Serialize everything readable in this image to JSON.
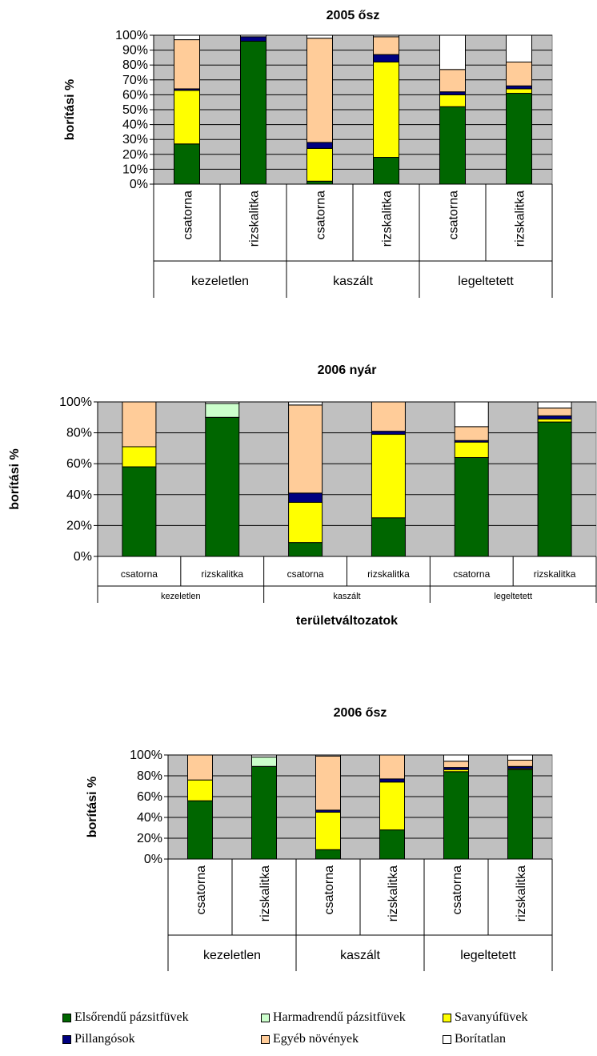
{
  "chart_data": [
    {
      "type": "bar",
      "stacked": true,
      "percent": true,
      "title": "2005 ősz",
      "ylabel": "borítási %",
      "xlabel": "",
      "ylim": [
        0,
        100
      ],
      "yticks": [
        "0%",
        "10%",
        "20%",
        "30%",
        "40%",
        "50%",
        "60%",
        "70%",
        "80%",
        "90%",
        "100%"
      ],
      "groups": [
        "kezeletlen",
        "kaszált",
        "legeltetett"
      ],
      "categories": [
        "csatorna",
        "rizskalitka",
        "csatorna",
        "rizskalitka",
        "csatorna",
        "rizskalitka"
      ],
      "category_label_orientation": "vertical",
      "series": [
        {
          "name": "Elsőrendű pázsitfüvek",
          "values": [
            27,
            96,
            2,
            18,
            52,
            61
          ]
        },
        {
          "name": "Harmadrendű pázsitfüvek",
          "values": [
            0,
            0,
            0,
            0,
            0,
            0
          ]
        },
        {
          "name": "Savanyúfüvek",
          "values": [
            36,
            0,
            22,
            64,
            8,
            3
          ]
        },
        {
          "name": "Pillangósok",
          "values": [
            1,
            3,
            4,
            5,
            2,
            2
          ]
        },
        {
          "name": "Egyéb növények",
          "values": [
            33,
            0,
            70,
            12,
            15,
            16
          ]
        },
        {
          "name": "Borítatlan",
          "values": [
            3,
            1,
            2,
            1,
            23,
            18
          ]
        }
      ]
    },
    {
      "type": "bar",
      "stacked": true,
      "percent": true,
      "title": "2006 nyár",
      "ylabel": "borítási %",
      "xlabel": "területváltozatok",
      "ylim": [
        0,
        100
      ],
      "yticks": [
        "0%",
        "20%",
        "40%",
        "60%",
        "80%",
        "100%"
      ],
      "groups": [
        "kezeletlen",
        "kaszált",
        "legeltetett"
      ],
      "categories": [
        "csatorna",
        "rizskalitka",
        "csatorna",
        "rizskalitka",
        "csatorna",
        "rizskalitka"
      ],
      "category_label_orientation": "horizontal",
      "series": [
        {
          "name": "Elsőrendű pázsitfüvek",
          "values": [
            58,
            90,
            9,
            25,
            64,
            87
          ]
        },
        {
          "name": "Harmadrendű pázsitfüvek",
          "values": [
            0,
            9,
            0,
            0,
            0,
            0
          ]
        },
        {
          "name": "Savanyúfüvek",
          "values": [
            13,
            0,
            26,
            54,
            10,
            2
          ]
        },
        {
          "name": "Pillangósok",
          "values": [
            0,
            0,
            6,
            2,
            1,
            2
          ]
        },
        {
          "name": "Egyéb növények",
          "values": [
            29,
            0,
            57,
            19,
            9,
            5
          ]
        },
        {
          "name": "Borítatlan",
          "values": [
            0,
            1,
            2,
            0,
            16,
            4
          ]
        }
      ]
    },
    {
      "type": "bar",
      "stacked": true,
      "percent": true,
      "title": "2006 ősz",
      "ylabel": "borítási %",
      "xlabel": "",
      "ylim": [
        0,
        100
      ],
      "yticks": [
        "0%",
        "20%",
        "40%",
        "60%",
        "80%",
        "100%"
      ],
      "groups": [
        "kezeletlen",
        "kaszált",
        "legeltetett"
      ],
      "categories": [
        "csatorna",
        "rizskalitka",
        "csatorna",
        "rizskalitka",
        "csatorna",
        "rizskalitka"
      ],
      "category_label_orientation": "vertical",
      "series": [
        {
          "name": "Elsőrendű pázsitfüvek",
          "values": [
            56,
            89,
            9,
            28,
            84,
            86
          ]
        },
        {
          "name": "Harmadrendű pázsitfüvek",
          "values": [
            0,
            9,
            0,
            0,
            0,
            0
          ]
        },
        {
          "name": "Savanyúfüvek",
          "values": [
            20,
            0,
            36,
            46,
            2,
            1
          ]
        },
        {
          "name": "Pillangósok",
          "values": [
            0,
            0,
            2,
            3,
            2,
            2
          ]
        },
        {
          "name": "Egyéb növények",
          "values": [
            24,
            0,
            52,
            23,
            6,
            6
          ]
        },
        {
          "name": "Borítatlan",
          "values": [
            0,
            2,
            1,
            0,
            6,
            5
          ]
        }
      ]
    }
  ],
  "legend": {
    "items": [
      {
        "label": "Elsőrendű pázsitfüvek",
        "color": "#006600"
      },
      {
        "label": "Harmadrendű pázsitfüvek",
        "color": "#CCFFCC"
      },
      {
        "label": "Savanyúfüvek",
        "color": "#FFFF00"
      },
      {
        "label": "Pillangósok",
        "color": "#000080"
      },
      {
        "label": "Egyéb növények",
        "color": "#FFCC99"
      },
      {
        "label": "Borítatlan",
        "color": "#FFFFFF"
      }
    ]
  },
  "colors": {
    "plot_background": "#C0C0C0"
  }
}
